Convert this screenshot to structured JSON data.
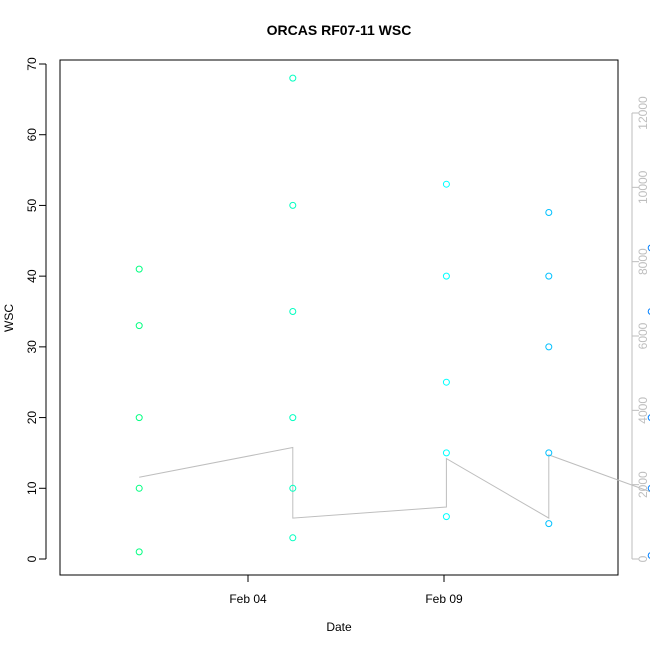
{
  "chart_data": {
    "type": "scatter",
    "title": "ORCAS RF07-11 WSC",
    "xlabel": "Date",
    "ylabel": "WSC",
    "x_ticks": [
      "Feb 04",
      "Feb 09"
    ],
    "ylim": [
      0,
      70
    ],
    "y_ticks": [
      0,
      10,
      20,
      30,
      40,
      50,
      60,
      70
    ],
    "y2lim": [
      0,
      12000
    ],
    "y2_ticks": [
      0,
      2000,
      4000,
      6000,
      8000,
      10000,
      12000
    ],
    "y2_color": "#bebebe",
    "xlim": [
      "2016-02-01",
      "2016-02-11"
    ],
    "grid": false,
    "series": [
      {
        "color": "#00ff80",
        "x": [
          "2016-02-02",
          "2016-02-02",
          "2016-02-02",
          "2016-02-02",
          "2016-02-02"
        ],
        "y": [
          1,
          10,
          20,
          33,
          41
        ]
      },
      {
        "color": "#00ffc0",
        "x": [
          "2016-02-05",
          "2016-02-05",
          "2016-02-05",
          "2016-02-05",
          "2016-02-05",
          "2016-02-05"
        ],
        "y": [
          3,
          10,
          20,
          35,
          50,
          68
        ]
      },
      {
        "color": "#00ffff",
        "x": [
          "2016-02-08",
          "2016-02-08",
          "2016-02-08",
          "2016-02-08",
          "2016-02-08"
        ],
        "y": [
          6,
          15,
          25,
          40,
          53
        ]
      },
      {
        "color": "#00c0ff",
        "x": [
          "2016-02-10",
          "2016-02-10",
          "2016-02-10",
          "2016-02-10",
          "2016-02-10"
        ],
        "y": [
          5,
          15,
          30,
          40,
          49
        ]
      },
      {
        "color": "#0080ff",
        "x": [
          "2016-02-12",
          "2016-02-12",
          "2016-02-12",
          "2016-02-12",
          "2016-02-12"
        ],
        "y": [
          0.5,
          10,
          20,
          35,
          44
        ]
      }
    ],
    "secondary_line": {
      "color": "#bebebe",
      "x": [
        "2016-02-02",
        "2016-02-05",
        "2016-02-05",
        "2016-02-08",
        "2016-02-08",
        "2016-02-10",
        "2016-02-10",
        "2016-02-12"
      ],
      "y": [
        2200,
        3000,
        1100,
        1400,
        2700,
        1100,
        2800,
        1800
      ]
    }
  }
}
